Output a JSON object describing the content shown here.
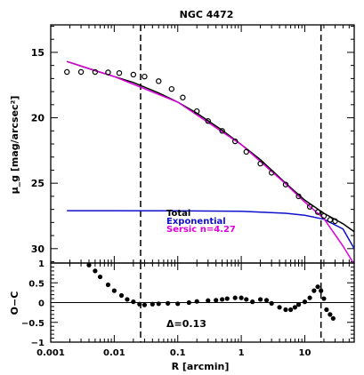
{
  "chart_data": [
    {
      "type": "line",
      "title": "NGC 4472",
      "ylabel": "μ_g [mag/arcsec²]",
      "xscale": "log",
      "xlim": [
        0.001,
        60
      ],
      "ylim": [
        31.1,
        12.9
      ],
      "yinverted": true,
      "yticks": [
        "15",
        "20",
        "25",
        "30"
      ],
      "ytick_values": [
        15,
        20,
        25,
        30
      ],
      "vlines": [
        0.026,
        18
      ],
      "legend": {
        "position": "lower-center",
        "entries": [
          "Total",
          "Exponential",
          "Sersic n=4.27"
        ]
      },
      "colors": {
        "data": "#000000",
        "total": "#000000",
        "exponential": "#1010cc",
        "sersic": "#dd00dd"
      },
      "series": [
        {
          "name": "Total",
          "x": [
            0.0018,
            0.003,
            0.005,
            0.01,
            0.02,
            0.05,
            0.1,
            0.2,
            0.5,
            1,
            2,
            5,
            10,
            20,
            40,
            60
          ],
          "y": [
            15.7,
            16.05,
            16.4,
            16.85,
            17.3,
            18.1,
            18.8,
            19.65,
            20.95,
            22.05,
            23.2,
            25.0,
            26.3,
            27.3,
            28.1,
            28.7
          ]
        },
        {
          "name": "Exponential",
          "x": [
            0.0018,
            0.01,
            0.1,
            1,
            5,
            10,
            20,
            40,
            60
          ],
          "y": [
            27.1,
            27.1,
            27.11,
            27.15,
            27.3,
            27.45,
            27.75,
            28.5,
            30.0
          ]
        },
        {
          "name": "Sersic n=4.27",
          "x": [
            0.0018,
            0.01,
            0.1,
            1,
            5,
            10,
            20,
            40,
            60
          ],
          "y": [
            15.7,
            16.85,
            18.8,
            22.05,
            25.05,
            26.45,
            27.7,
            29.8,
            31.2
          ]
        },
        {
          "name": "data",
          "x": [
            0.0018,
            0.003,
            0.005,
            0.008,
            0.012,
            0.02,
            0.03,
            0.05,
            0.08,
            0.12,
            0.2,
            0.3,
            0.5,
            0.8,
            1.2,
            2,
            3,
            5,
            8,
            12,
            16,
            20,
            25,
            30
          ],
          "y": [
            16.5,
            16.5,
            16.5,
            16.53,
            16.58,
            16.7,
            16.85,
            17.2,
            17.8,
            18.45,
            19.5,
            20.25,
            21.0,
            21.8,
            22.6,
            23.5,
            24.2,
            25.1,
            26.0,
            26.8,
            27.2,
            27.5,
            27.8,
            27.9
          ]
        }
      ]
    },
    {
      "type": "scatter",
      "xlabel": "R [arcmin]",
      "ylabel": "O−C",
      "xscale": "log",
      "xlim": [
        0.001,
        60
      ],
      "ylim": [
        -1,
        1
      ],
      "yticks": [
        "1",
        "0.5",
        "0",
        "−0.5",
        "−1"
      ],
      "ytick_values": [
        1,
        0.5,
        0,
        -0.5,
        -1
      ],
      "xticks": [
        "0.001",
        "0.01",
        "0.1",
        "1",
        "10"
      ],
      "xtick_values": [
        0.001,
        0.01,
        0.1,
        1,
        10
      ],
      "hline": 0,
      "vlines": [
        0.026,
        18
      ],
      "annotation": "Δ=0.13",
      "x": [
        0.004,
        0.005,
        0.006,
        0.008,
        0.01,
        0.013,
        0.016,
        0.02,
        0.025,
        0.03,
        0.04,
        0.05,
        0.07,
        0.1,
        0.15,
        0.2,
        0.3,
        0.4,
        0.5,
        0.6,
        0.8,
        1.0,
        1.2,
        1.5,
        2.0,
        2.5,
        3.0,
        4.0,
        5.0,
        6.0,
        7.0,
        8.0,
        10,
        12,
        14,
        16,
        18,
        20,
        22,
        25,
        28
      ],
      "y": [
        0.95,
        0.8,
        0.65,
        0.45,
        0.3,
        0.18,
        0.08,
        0.02,
        -0.04,
        -0.06,
        -0.04,
        -0.03,
        -0.02,
        -0.03,
        0.0,
        0.03,
        0.05,
        0.06,
        0.08,
        0.1,
        0.12,
        0.12,
        0.08,
        0.02,
        0.08,
        0.06,
        -0.02,
        -0.12,
        -0.18,
        -0.18,
        -0.12,
        -0.05,
        0.02,
        0.12,
        0.3,
        0.4,
        0.3,
        0.1,
        -0.18,
        -0.3,
        -0.4
      ]
    }
  ]
}
